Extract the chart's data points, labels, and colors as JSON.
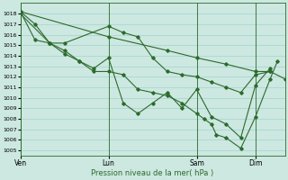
{
  "xlabel": "Pression niveau de la mer( hPa )",
  "bg_color": "#cce8e0",
  "grid_color": "#99cccc",
  "line_color": "#2d6a2d",
  "ylim": [
    1004.5,
    1019.0
  ],
  "ytick_min": 1005,
  "ytick_max": 1018,
  "xlim": [
    0,
    216
  ],
  "day_positions": [
    0,
    72,
    144,
    192
  ],
  "day_labels": [
    "Ven",
    "Lun",
    "Sam",
    "Dim"
  ],
  "series": [
    {
      "x": [
        0,
        72,
        120,
        144,
        168,
        192,
        204,
        216
      ],
      "y": [
        1018.2,
        1015.8,
        1014.5,
        1013.8,
        1013.2,
        1012.5,
        1012.5,
        1011.8
      ]
    },
    {
      "x": [
        0,
        12,
        24,
        36,
        72,
        84,
        96,
        108,
        120,
        132,
        144,
        156,
        168,
        180,
        192,
        204
      ],
      "y": [
        1018.2,
        1017.0,
        1015.2,
        1015.2,
        1016.8,
        1016.2,
        1015.8,
        1013.8,
        1012.5,
        1012.2,
        1012.0,
        1011.5,
        1011.0,
        1010.5,
        1012.2,
        1012.5
      ]
    },
    {
      "x": [
        0,
        24,
        36,
        48,
        60,
        72,
        84,
        96,
        108,
        120,
        132,
        144,
        156,
        168,
        180,
        192,
        204
      ],
      "y": [
        1018.0,
        1015.2,
        1014.5,
        1013.5,
        1012.8,
        1013.8,
        1009.5,
        1008.5,
        1009.5,
        1010.5,
        1009.0,
        1010.8,
        1008.2,
        1007.5,
        1006.2,
        1011.2,
        1012.8
      ]
    },
    {
      "x": [
        0,
        12,
        24,
        36,
        48,
        60,
        72,
        84,
        96,
        108,
        120,
        132,
        144,
        150,
        156,
        160,
        168,
        180,
        192,
        204,
        210
      ],
      "y": [
        1018.2,
        1015.5,
        1015.2,
        1014.2,
        1013.5,
        1012.5,
        1012.5,
        1012.2,
        1010.8,
        1010.5,
        1010.2,
        1009.5,
        1008.5,
        1008.0,
        1007.5,
        1006.5,
        1006.2,
        1005.2,
        1008.2,
        1011.8,
        1013.5
      ]
    }
  ]
}
